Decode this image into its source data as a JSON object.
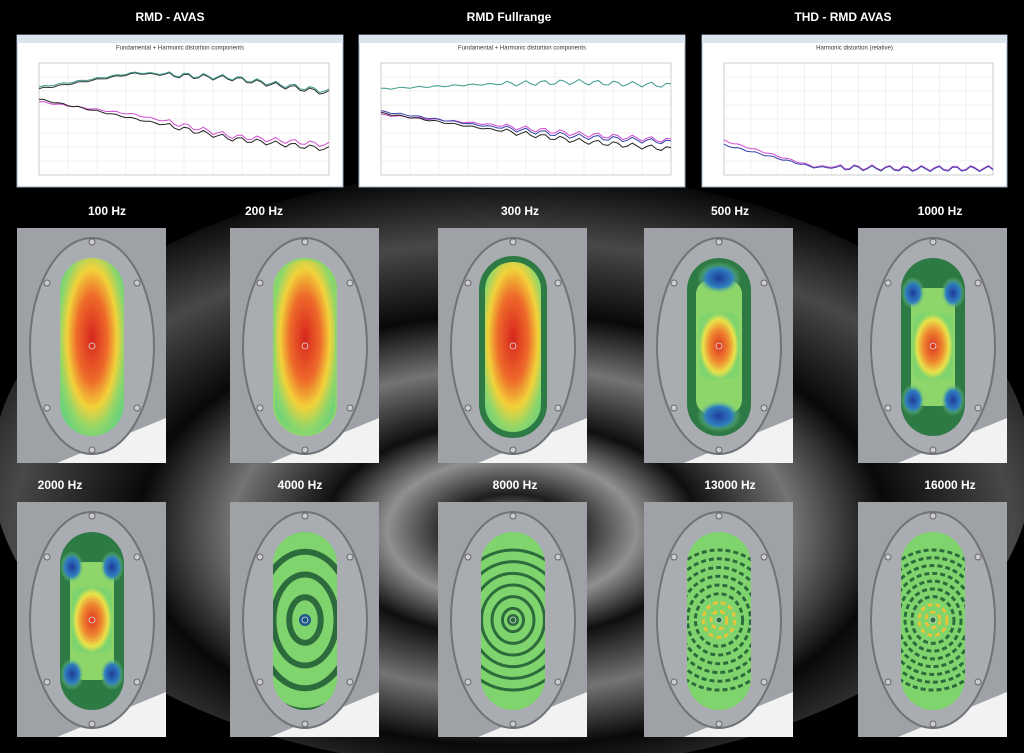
{
  "charts": [
    {
      "title": "RMD - AVAS",
      "plot_title": "Fundamental + Harmonic distortion components"
    },
    {
      "title": "RMD Fullrange",
      "plot_title": "Fundamental + Harmonic distortion components"
    },
    {
      "title": "THD - RMD AVAS",
      "plot_title": "Harmonic distortion (relative)"
    }
  ],
  "panels": [
    {
      "label": "100 Hz"
    },
    {
      "label": "200 Hz"
    },
    {
      "label": "300 Hz"
    },
    {
      "label": "500 Hz"
    },
    {
      "label": "1000 Hz"
    },
    {
      "label": "2000 Hz"
    },
    {
      "label": "4000 Hz"
    },
    {
      "label": "8000 Hz"
    },
    {
      "label": "13000 Hz"
    },
    {
      "label": "16000 Hz"
    }
  ]
}
